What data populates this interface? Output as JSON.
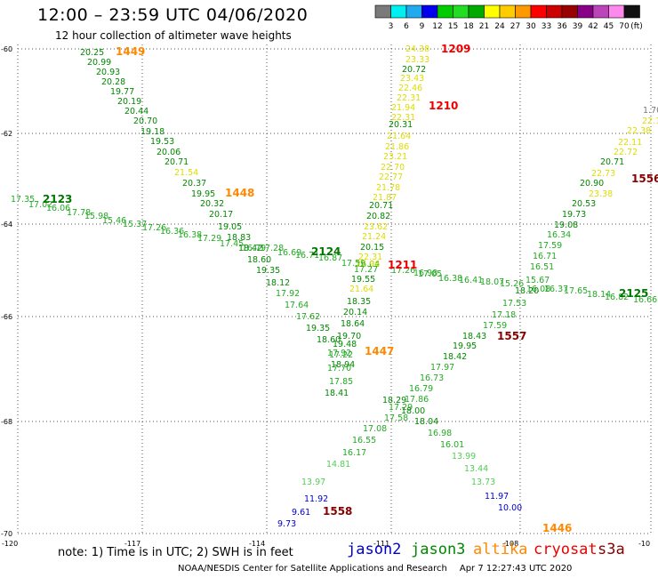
{
  "header": {
    "title": "12:00 – 23:59 UTC 04/06/2020",
    "subtitle": "12 hour collection of altimeter wave heights"
  },
  "colorbar": {
    "colors": [
      "#7a7a7a",
      "#00f0f0",
      "#22aaee",
      "#0000ee",
      "#00cc00",
      "#22dd22",
      "#00aa00",
      "#ffff00",
      "#ffcc00",
      "#ff9900",
      "#ff0000",
      "#cc0000",
      "#990000",
      "#880088",
      "#bb44bb",
      "#ff88ee",
      "#111111"
    ],
    "labels": [
      "3",
      "6",
      "9",
      "12",
      "15",
      "18",
      "21",
      "24",
      "27",
      "30",
      "33",
      "36",
      "39",
      "42",
      "45",
      "70"
    ],
    "unit": "(ft)"
  },
  "axes": {
    "lat_labels": [
      "-60",
      "-62",
      "-64",
      "-66",
      "-68",
      "-70"
    ],
    "lon_labels": [
      "-120",
      "-117",
      "-114",
      "-111",
      "-108",
      "-10"
    ]
  },
  "tracks": [
    {
      "id": "1449",
      "color": "#ff8800"
    },
    {
      "id": "1209",
      "color": "#ee0000"
    },
    {
      "id": "1210",
      "color": "#ee0000"
    },
    {
      "id": "1448",
      "color": "#ff8800"
    },
    {
      "id": "2123",
      "color": "#007700"
    },
    {
      "id": "2124",
      "color": "#007700"
    },
    {
      "id": "1211",
      "color": "#ee0000"
    },
    {
      "id": "1447",
      "color": "#ff8800"
    },
    {
      "id": "1557",
      "color": "#880000"
    },
    {
      "id": "2125",
      "color": "#007700"
    },
    {
      "id": "1558",
      "color": "#880000"
    },
    {
      "id": "1446",
      "color": "#ff8800"
    },
    {
      "id": "1556",
      "color": "#880000"
    }
  ],
  "observations": [
    {
      "v": "20.25",
      "c": "#008800"
    },
    {
      "v": "20.99",
      "c": "#008800"
    },
    {
      "v": "20.93",
      "c": "#008800"
    },
    {
      "v": "20.28",
      "c": "#008800"
    },
    {
      "v": "19.77",
      "c": "#008800"
    },
    {
      "v": "20.19",
      "c": "#008800"
    },
    {
      "v": "20.44",
      "c": "#008800"
    },
    {
      "v": "20.70",
      "c": "#008800"
    },
    {
      "v": "19.18",
      "c": "#008800"
    },
    {
      "v": "19.53",
      "c": "#008800"
    },
    {
      "v": "20.06",
      "c": "#008800"
    },
    {
      "v": "20.71",
      "c": "#008800"
    },
    {
      "v": "21.54",
      "c": "#dddd00"
    },
    {
      "v": "20.37",
      "c": "#008800"
    },
    {
      "v": "19.95",
      "c": "#008800"
    },
    {
      "v": "20.32",
      "c": "#008800"
    },
    {
      "v": "20.17",
      "c": "#008800"
    },
    {
      "v": "19.05",
      "c": "#008800"
    },
    {
      "v": "18.83",
      "c": "#008800"
    },
    {
      "v": "18.42",
      "c": "#008800"
    },
    {
      "v": "18.60",
      "c": "#008800"
    },
    {
      "v": "19.35",
      "c": "#008800"
    },
    {
      "v": "18.12",
      "c": "#008800"
    },
    {
      "v": "17.92",
      "c": "#22aa22"
    },
    {
      "v": "17.64",
      "c": "#22aa22"
    },
    {
      "v": "17.62",
      "c": "#22aa22"
    },
    {
      "v": "19.35",
      "c": "#008800"
    },
    {
      "v": "18.60",
      "c": "#008800"
    },
    {
      "v": "17.92",
      "c": "#22aa22"
    },
    {
      "v": "18.94",
      "c": "#008800"
    },
    {
      "v": "17.35",
      "c": "#22aa22"
    },
    {
      "v": "17.02",
      "c": "#22aa22"
    },
    {
      "v": "16.06",
      "c": "#22aa22"
    },
    {
      "v": "17.78",
      "c": "#22aa22"
    },
    {
      "v": "15.98",
      "c": "#22aa22"
    },
    {
      "v": "15.46",
      "c": "#22aa22"
    },
    {
      "v": "15.37",
      "c": "#22aa22"
    },
    {
      "v": "17.26",
      "c": "#22aa22"
    },
    {
      "v": "16.36",
      "c": "#22aa22"
    },
    {
      "v": "16.38",
      "c": "#22aa22"
    },
    {
      "v": "17.29",
      "c": "#22aa22"
    },
    {
      "v": "17.45",
      "c": "#22aa22"
    },
    {
      "v": "16.79",
      "c": "#22aa22"
    },
    {
      "v": "17.28",
      "c": "#22aa22"
    },
    {
      "v": "16.69",
      "c": "#22aa22"
    },
    {
      "v": "16.71",
      "c": "#22aa22"
    },
    {
      "v": "16.87",
      "c": "#22aa22"
    },
    {
      "v": "17.59",
      "c": "#22aa22"
    },
    {
      "v": "16.04",
      "c": "#22aa22"
    },
    {
      "v": "17.26",
      "c": "#22aa22"
    },
    {
      "v": "16.98",
      "c": "#22aa22"
    },
    {
      "v": "17.05",
      "c": "#22aa22"
    },
    {
      "v": "16.38",
      "c": "#22aa22"
    },
    {
      "v": "16.41",
      "c": "#22aa22"
    },
    {
      "v": "18.07",
      "c": "#22aa22"
    },
    {
      "v": "15.26",
      "c": "#22aa22"
    },
    {
      "v": "16.08",
      "c": "#22aa22"
    },
    {
      "v": "16.37",
      "c": "#22aa22"
    },
    {
      "v": "17.65",
      "c": "#22aa22"
    },
    {
      "v": "18.14",
      "c": "#22aa22"
    },
    {
      "v": "16.82",
      "c": "#22aa22"
    },
    {
      "v": "16.66",
      "c": "#22aa22"
    },
    {
      "v": "24.38",
      "c": "#dddd00"
    },
    {
      "v": "23.33",
      "c": "#dddd00"
    },
    {
      "v": "20.72",
      "c": "#008800"
    },
    {
      "v": "23.43",
      "c": "#dddd00"
    },
    {
      "v": "22.46",
      "c": "#dddd00"
    },
    {
      "v": "22.31",
      "c": "#dddd00"
    },
    {
      "v": "21.94",
      "c": "#dddd00"
    },
    {
      "v": "22.31",
      "c": "#dddd00"
    },
    {
      "v": "20.31",
      "c": "#008800"
    },
    {
      "v": "21.64",
      "c": "#dddd00"
    },
    {
      "v": "21.86",
      "c": "#dddd00"
    },
    {
      "v": "23.21",
      "c": "#dddd00"
    },
    {
      "v": "22.70",
      "c": "#dddd00"
    },
    {
      "v": "22.77",
      "c": "#dddd00"
    },
    {
      "v": "21.78",
      "c": "#dddd00"
    },
    {
      "v": "21.87",
      "c": "#dddd00"
    },
    {
      "v": "20.71",
      "c": "#008800"
    },
    {
      "v": "20.82",
      "c": "#008800"
    },
    {
      "v": "23.62",
      "c": "#dddd00"
    },
    {
      "v": "21.24",
      "c": "#dddd00"
    },
    {
      "v": "20.15",
      "c": "#008800"
    },
    {
      "v": "22.31",
      "c": "#dddd00"
    },
    {
      "v": "22.96",
      "c": "#dddd00"
    },
    {
      "v": "17.27",
      "c": "#22aa22"
    },
    {
      "v": "19.55",
      "c": "#008800"
    },
    {
      "v": "21.64",
      "c": "#dddd00"
    },
    {
      "v": "18.35",
      "c": "#008800"
    },
    {
      "v": "20.14",
      "c": "#008800"
    },
    {
      "v": "18.64",
      "c": "#008800"
    },
    {
      "v": "19.70",
      "c": "#008800"
    },
    {
      "v": "19.48",
      "c": "#008800"
    },
    {
      "v": "17.22",
      "c": "#22aa22"
    },
    {
      "v": "17.70",
      "c": "#22aa22"
    },
    {
      "v": "17.85",
      "c": "#22aa22"
    },
    {
      "v": "18.41",
      "c": "#008800"
    },
    {
      "v": "18.29",
      "c": "#008800"
    },
    {
      "v": "17.29",
      "c": "#22aa22"
    },
    {
      "v": "17.58",
      "c": "#22aa22"
    },
    {
      "v": "17.08",
      "c": "#22aa22"
    },
    {
      "v": "16.55",
      "c": "#22aa22"
    },
    {
      "v": "16.17",
      "c": "#22aa22"
    },
    {
      "v": "14.81",
      "c": "#55cc55"
    },
    {
      "v": "13.97",
      "c": "#55cc55"
    },
    {
      "v": "11.92",
      "c": "#0000cc"
    },
    {
      "v": "9.61",
      "c": "#0000cc"
    },
    {
      "v": "9.73",
      "c": "#0000cc"
    },
    {
      "v": "1.70",
      "c": "#777777"
    },
    {
      "v": "22.14",
      "c": "#dddd00"
    },
    {
      "v": "22.38",
      "c": "#dddd00"
    },
    {
      "v": "22.11",
      "c": "#dddd00"
    },
    {
      "v": "22.72",
      "c": "#dddd00"
    },
    {
      "v": "20.71",
      "c": "#008800"
    },
    {
      "v": "22.73",
      "c": "#dddd00"
    },
    {
      "v": "20.90",
      "c": "#008800"
    },
    {
      "v": "23.38",
      "c": "#dddd00"
    },
    {
      "v": "20.53",
      "c": "#008800"
    },
    {
      "v": "19.73",
      "c": "#008800"
    },
    {
      "v": "19.08",
      "c": "#008800"
    },
    {
      "v": "16.34",
      "c": "#22aa22"
    },
    {
      "v": "17.59",
      "c": "#22aa22"
    },
    {
      "v": "16.71",
      "c": "#22aa22"
    },
    {
      "v": "16.51",
      "c": "#22aa22"
    },
    {
      "v": "15.67",
      "c": "#22aa22"
    },
    {
      "v": "18.20",
      "c": "#008800"
    },
    {
      "v": "17.53",
      "c": "#22aa22"
    },
    {
      "v": "17.18",
      "c": "#22aa22"
    },
    {
      "v": "17.59",
      "c": "#22aa22"
    },
    {
      "v": "18.43",
      "c": "#008800"
    },
    {
      "v": "19.95",
      "c": "#008800"
    },
    {
      "v": "18.42",
      "c": "#008800"
    },
    {
      "v": "17.97",
      "c": "#22aa22"
    },
    {
      "v": "16.73",
      "c": "#22aa22"
    },
    {
      "v": "16.79",
      "c": "#22aa22"
    },
    {
      "v": "17.86",
      "c": "#22aa22"
    },
    {
      "v": "18.00",
      "c": "#008800"
    },
    {
      "v": "18.04",
      "c": "#008800"
    },
    {
      "v": "16.98",
      "c": "#22aa22"
    },
    {
      "v": "16.01",
      "c": "#22aa22"
    },
    {
      "v": "13.99",
      "c": "#55cc55"
    },
    {
      "v": "13.44",
      "c": "#55cc55"
    },
    {
      "v": "13.73",
      "c": "#55cc55"
    },
    {
      "v": "11.97",
      "c": "#0000cc"
    },
    {
      "v": "10.00",
      "c": "#0000cc"
    }
  ],
  "footer": {
    "note": "note:  1) Time is in UTC;  2) SWH is in feet",
    "satellites": [
      {
        "name": "jason2",
        "color": "#0000cc"
      },
      {
        "name": "jason3",
        "color": "#008800"
      },
      {
        "name": "altika",
        "color": "#ff8800"
      },
      {
        "name": "cryosat",
        "color": "#ee0000"
      },
      {
        "name": "s3a",
        "color": "#880000"
      }
    ],
    "credit": "NOAA/NESDIS Center for Satellite Applications and Research",
    "timestamp": "Apr  7 12:27:43 UTC 2020"
  }
}
